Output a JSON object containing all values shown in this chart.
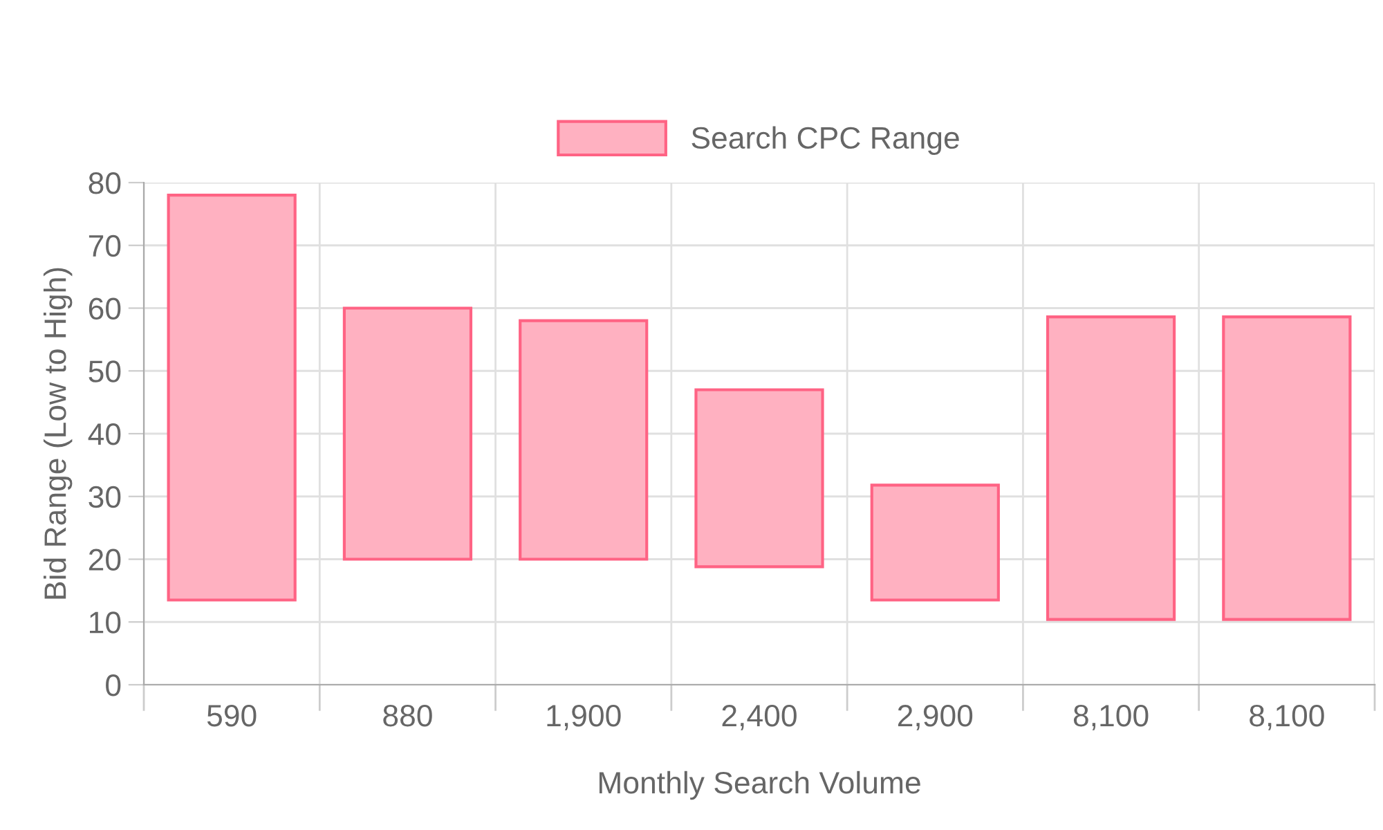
{
  "chart_data": {
    "type": "bar",
    "xlabel": "Monthly Search Volume",
    "ylabel": "Bid Range (Low to High)",
    "categories": [
      "590",
      "880",
      "1,900",
      "2,400",
      "2,900",
      "8,100",
      "8,100"
    ],
    "series": [
      {
        "name": "Search CPC Range",
        "color": "#ffb1c1",
        "base": [
          13.5,
          20,
          20,
          18.8,
          13.5,
          10.4,
          10.4
        ],
        "values": [
          64.5,
          40,
          38,
          28.2,
          18.3,
          48.2,
          48.2
        ]
      }
    ],
    "ylim": [
      0,
      80
    ],
    "yticks": [
      0,
      10,
      20,
      30,
      40,
      50,
      60,
      70,
      80
    ],
    "grid": true,
    "legend": "top"
  }
}
